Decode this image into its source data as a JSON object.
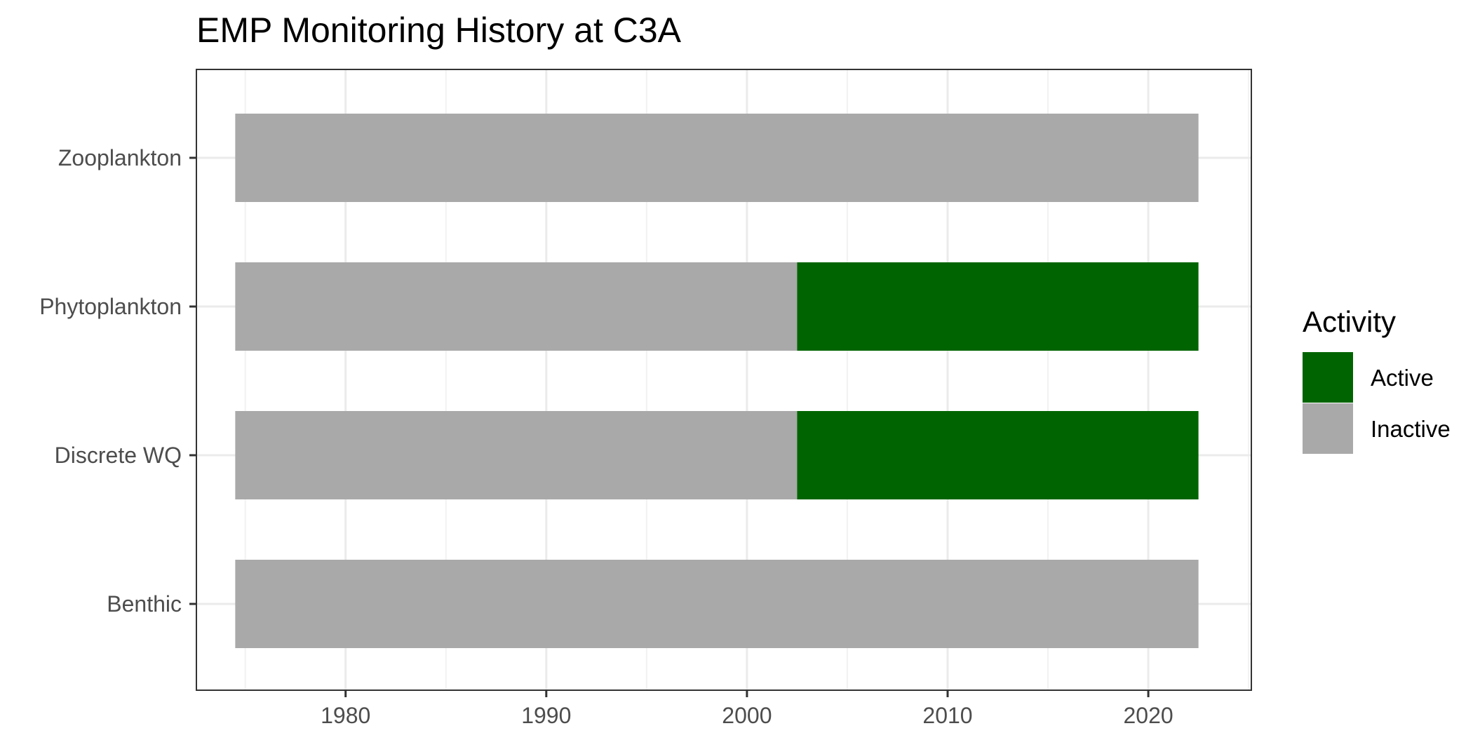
{
  "chart_data": {
    "type": "bar",
    "orientation": "horizontal",
    "stacked_timeline": true,
    "title": "EMP Monitoring History at C3A",
    "xlabel": "",
    "ylabel": "",
    "xlim": [
      1972.6,
      2025.1
    ],
    "x_ticks": [
      1980,
      1990,
      2000,
      2010,
      2020
    ],
    "x_tick_labels": [
      "1980",
      "1990",
      "2000",
      "2010",
      "2020"
    ],
    "grid": true,
    "categories": [
      "Zooplankton",
      "Phytoplankton",
      "Discrete WQ",
      "Benthic"
    ],
    "series": [
      {
        "name": "Zooplankton",
        "segments": [
          {
            "start": 1974.5,
            "end": 2022.5,
            "activity": "Inactive"
          }
        ]
      },
      {
        "name": "Phytoplankton",
        "segments": [
          {
            "start": 1974.5,
            "end": 2002.5,
            "activity": "Inactive"
          },
          {
            "start": 2002.5,
            "end": 2022.5,
            "activity": "Active"
          }
        ]
      },
      {
        "name": "Discrete WQ",
        "segments": [
          {
            "start": 1974.5,
            "end": 2002.5,
            "activity": "Inactive"
          },
          {
            "start": 2002.5,
            "end": 2022.5,
            "activity": "Active"
          }
        ]
      },
      {
        "name": "Benthic",
        "segments": [
          {
            "start": 1974.5,
            "end": 2022.5,
            "activity": "Inactive"
          }
        ]
      }
    ],
    "legend": {
      "title": "Activity",
      "placement": "right",
      "items": [
        {
          "label": "Active",
          "color": "#006400"
        },
        {
          "label": "Inactive",
          "color": "#A9A9A9"
        }
      ]
    },
    "colors": {
      "Active": "#006400",
      "Inactive": "#A9A9A9",
      "panel_border": "#333333",
      "grid_major": "#EBEBEB",
      "grid_minor": "#F2F2F2",
      "tick_text": "#4d4d4d"
    }
  }
}
